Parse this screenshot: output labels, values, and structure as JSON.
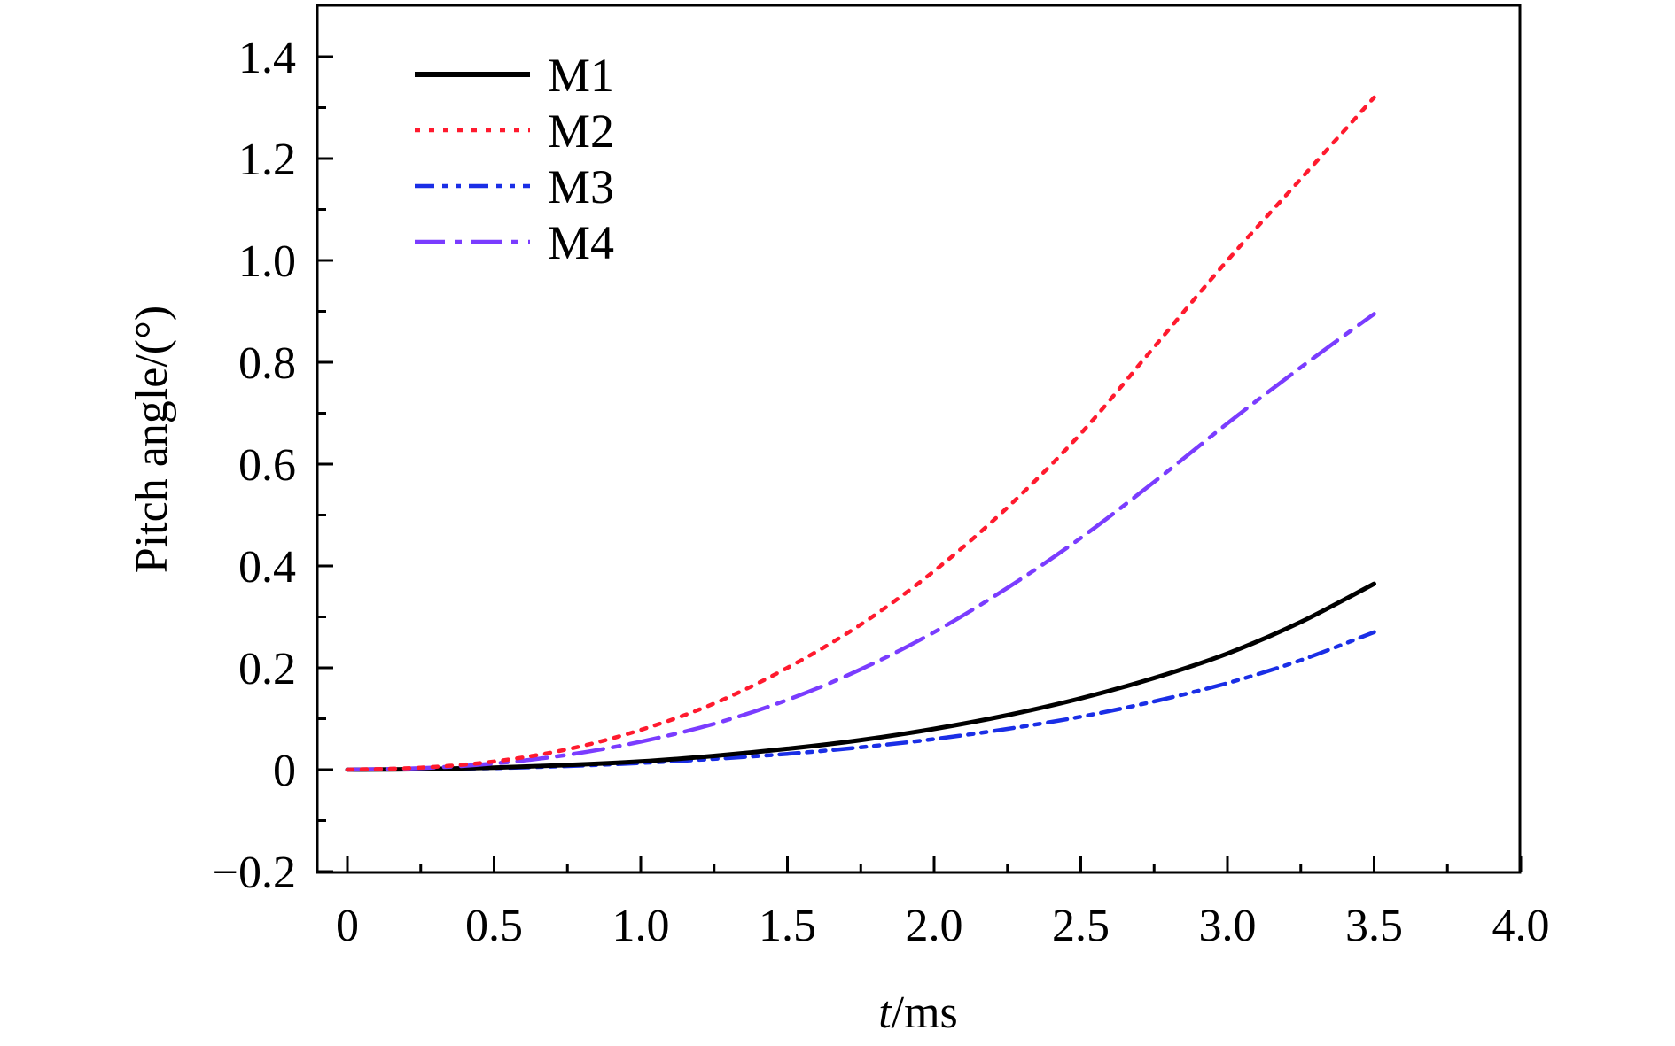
{
  "chart_data": {
    "type": "line",
    "title": "",
    "xlabel": "t/ms",
    "xlabel_parts": {
      "italic": "t",
      "rest": "/ms"
    },
    "ylabel": "Pitch angle/(°)",
    "xlim": [
      -0.1,
      4.0
    ],
    "ylim": [
      -0.2,
      1.5
    ],
    "x_ticks": [
      0,
      0.5,
      1.0,
      1.5,
      2.0,
      2.5,
      3.0,
      3.5,
      4.0
    ],
    "x_tick_labels": [
      "0",
      "0.5",
      "1.0",
      "1.5",
      "2.0",
      "2.5",
      "3.0",
      "3.5",
      "4.0"
    ],
    "y_ticks": [
      -0.2,
      0,
      0.2,
      0.4,
      0.6,
      0.8,
      1.0,
      1.2,
      1.4
    ],
    "y_tick_labels": [
      "−0.2",
      "0",
      "0.2",
      "0.4",
      "0.6",
      "0.8",
      "1.0",
      "1.2",
      "1.4"
    ],
    "grid": false,
    "legend_position": "top-left",
    "x": [
      0,
      0.25,
      0.5,
      0.75,
      1.0,
      1.25,
      1.5,
      1.75,
      2.0,
      2.25,
      2.5,
      2.75,
      3.0,
      3.25,
      3.5
    ],
    "series": [
      {
        "name": "M1",
        "color": "#000000",
        "style": "solid",
        "values": [
          0,
          0.001,
          0.004,
          0.009,
          0.016,
          0.027,
          0.041,
          0.058,
          0.08,
          0.107,
          0.14,
          0.18,
          0.228,
          0.29,
          0.365
        ]
      },
      {
        "name": "M2",
        "color": "#ff1a2e",
        "style": "dotted",
        "values": [
          0,
          0.004,
          0.016,
          0.04,
          0.078,
          0.13,
          0.2,
          0.285,
          0.39,
          0.515,
          0.66,
          0.83,
          1.0,
          1.16,
          1.32
        ]
      },
      {
        "name": "M3",
        "color": "#1a2ee6",
        "style": "dash-dot-dot",
        "values": [
          0,
          0.001,
          0.003,
          0.007,
          0.013,
          0.021,
          0.031,
          0.044,
          0.06,
          0.08,
          0.104,
          0.134,
          0.17,
          0.215,
          0.27
        ]
      },
      {
        "name": "M4",
        "color": "#7a3cff",
        "style": "dash-dot",
        "values": [
          0,
          0.003,
          0.012,
          0.029,
          0.055,
          0.09,
          0.137,
          0.197,
          0.27,
          0.357,
          0.455,
          0.565,
          0.68,
          0.79,
          0.895
        ]
      }
    ]
  }
}
